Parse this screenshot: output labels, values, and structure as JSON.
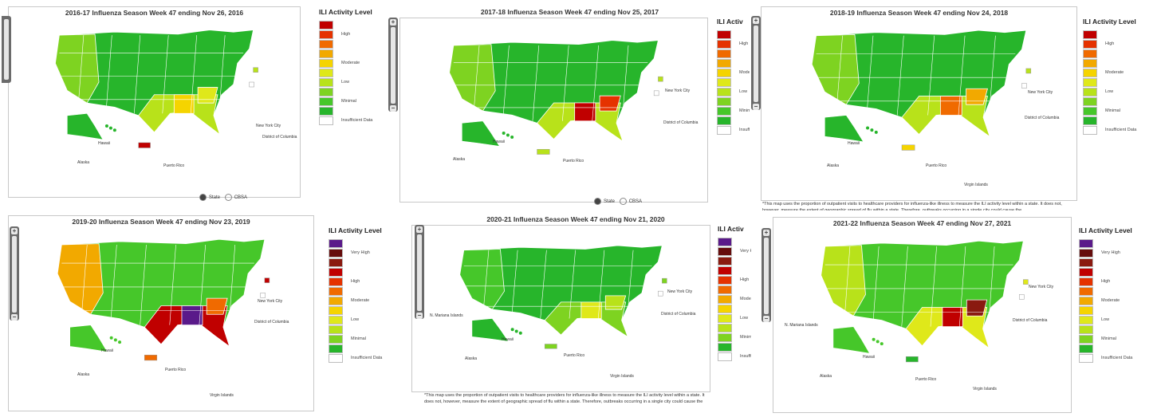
{
  "colors": {
    "minimal_dark": "#27b52b",
    "minimal": "#46c72a",
    "minimal_light": "#7ed321",
    "low_yellowgreen": "#b8e21a",
    "low": "#dfe81a",
    "moderate": "#f5d400",
    "moderate_orange": "#f2a900",
    "high": "#f06a00",
    "high_red": "#e53200",
    "very_high": "#c00000",
    "very_high_dark": "#8a1a10",
    "very_high_darkest": "#650c0c",
    "purple": "#5a1a8a",
    "insufficient": "#ffffff"
  },
  "panels": [
    {
      "title": "2016-17 Influenza Season Week 47 ending Nov 26, 2016",
      "legend_title": "ILI Activity Level",
      "legend": [
        {
          "color": "#c00000",
          "label": ""
        },
        {
          "color": "#e53200",
          "label": "High"
        },
        {
          "color": "#f06a00",
          "label": ""
        },
        {
          "color": "#f2a900",
          "label": ""
        },
        {
          "color": "#f5d400",
          "label": "Moderate"
        },
        {
          "color": "#dfe81a",
          "label": ""
        },
        {
          "color": "#b8e21a",
          "label": "Low"
        },
        {
          "color": "#7ed321",
          "label": ""
        },
        {
          "color": "#46c72a",
          "label": "Minimal"
        },
        {
          "color": "#27b52b",
          "label": ""
        },
        {
          "color": "#ffffff",
          "label": "Insufficient Data"
        }
      ],
      "places": {
        "nyc": "New York City",
        "dc": "District of Columbia",
        "hawaii": "Hawaii",
        "alaska": "Alaska",
        "pr": "Puerto Rico"
      },
      "toggle": {
        "state": "State",
        "cbsa": "CBSA"
      },
      "fills": {
        "main": "#27b52b",
        "west": "#7ed321",
        "south": "#b8e21a",
        "hot1": "#f5d400",
        "hot2": "#dfe81a",
        "pr": "#c00000"
      }
    },
    {
      "title": "2017-18 Influenza Season Week 47 ending Nov 25, 2017",
      "places": {
        "nyc": "New York City",
        "dc": "District of Columbia",
        "hawaii": "Hawaii",
        "alaska": "Alaska",
        "pr": "Puerto Rico"
      },
      "toggle": {
        "state": "State",
        "cbsa": "CBSA"
      },
      "fills": {
        "main": "#27b52b",
        "west": "#7ed321",
        "south": "#b8e21a",
        "hot1": "#c00000",
        "hot2": "#e53200",
        "pr": "#b8e21a"
      }
    },
    {
      "title": "2018-19 Influenza Season Week 47 ending Nov 24, 2018",
      "legend_title": "ILI Activity Level",
      "legend": [
        {
          "color": "#c00000",
          "label": ""
        },
        {
          "color": "#e53200",
          "label": "High"
        },
        {
          "color": "#f06a00",
          "label": ""
        },
        {
          "color": "#f2a900",
          "label": ""
        },
        {
          "color": "#f5d400",
          "label": "Moderate"
        },
        {
          "color": "#dfe81a",
          "label": ""
        },
        {
          "color": "#b8e21a",
          "label": "Low"
        },
        {
          "color": "#7ed321",
          "label": ""
        },
        {
          "color": "#46c72a",
          "label": "Minimal"
        },
        {
          "color": "#27b52b",
          "label": ""
        },
        {
          "color": "#ffffff",
          "label": "Insufficient Data"
        }
      ],
      "places": {
        "nyc": "New York City",
        "dc": "District of Columbia",
        "hawaii": "Hawaii",
        "alaska": "Alaska",
        "pr": "Puerto Rico",
        "vi": "Virgin Islands"
      },
      "footnote": "*This map uses the proportion of outpatient visits to healthcare providers for influenza-like illness to measure the ILI activity level within a state. It does not, however, measure the extent of geographic spread of flu within a state. Therefore, outbreaks occurring in a single city could cause the",
      "fills": {
        "main": "#27b52b",
        "west": "#7ed321",
        "south": "#b8e21a",
        "hot1": "#f06a00",
        "hot2": "#f2a900",
        "pr": "#f5d400"
      }
    },
    {
      "title": "2019-20 Influenza Season Week 47 ending Nov 23, 2019",
      "legend_title": "ILI Activity Level",
      "legend": [
        {
          "color": "#5a1a8a",
          "label": ""
        },
        {
          "color": "#650c0c",
          "label": "Very High"
        },
        {
          "color": "#8a1a10",
          "label": ""
        },
        {
          "color": "#c00000",
          "label": ""
        },
        {
          "color": "#e53200",
          "label": "High"
        },
        {
          "color": "#f06a00",
          "label": ""
        },
        {
          "color": "#f2a900",
          "label": "Moderate"
        },
        {
          "color": "#f5d400",
          "label": ""
        },
        {
          "color": "#dfe81a",
          "label": "Low"
        },
        {
          "color": "#b8e21a",
          "label": ""
        },
        {
          "color": "#7ed321",
          "label": "Minimal"
        },
        {
          "color": "#27b52b",
          "label": ""
        },
        {
          "color": "#ffffff",
          "label": "Insufficient Data"
        }
      ],
      "places": {
        "nyc": "New York City",
        "dc": "District of Columbia",
        "hawaii": "Hawaii",
        "alaska": "Alaska",
        "pr": "Puerto Rico",
        "vi": "Virgin Islands"
      },
      "fills": {
        "main": "#46c72a",
        "west": "#f2a900",
        "south": "#c00000",
        "hot1": "#5a1a8a",
        "hot2": "#f06a00",
        "pr": "#f06a00"
      }
    },
    {
      "title": "2020-21 Influenza Season Week 47 ending Nov 21, 2020",
      "places": {
        "nyc": "New York City",
        "dc": "District of Columbia",
        "hawaii": "Hawaii",
        "alaska": "Alaska",
        "pr": "Puerto Rico",
        "vi": "Virgin Islands",
        "nmi": "N. Mariana Islands"
      },
      "footnote": "*This map uses the proportion of outpatient visits to healthcare providers for influenza-like illness to measure the ILI activity level within a state. It does not, however, measure the extent of geographic spread of flu within a state. Therefore, outbreaks occurring in a single city could cause the",
      "fills": {
        "main": "#27b52b",
        "west": "#46c72a",
        "south": "#7ed321",
        "hot1": "#dfe81a",
        "hot2": "#b8e21a",
        "pr": "#7ed321"
      }
    },
    {
      "title": "2021-22 Influenza Season Week 47 ending Nov 27, 2021",
      "legend_title": "ILI Activity Level",
      "legend": [
        {
          "color": "#5a1a8a",
          "label": ""
        },
        {
          "color": "#650c0c",
          "label": "Very High"
        },
        {
          "color": "#8a1a10",
          "label": ""
        },
        {
          "color": "#c00000",
          "label": ""
        },
        {
          "color": "#e53200",
          "label": "High"
        },
        {
          "color": "#f06a00",
          "label": ""
        },
        {
          "color": "#f2a900",
          "label": "Moderate"
        },
        {
          "color": "#f5d400",
          "label": ""
        },
        {
          "color": "#dfe81a",
          "label": "Low"
        },
        {
          "color": "#b8e21a",
          "label": ""
        },
        {
          "color": "#7ed321",
          "label": "Minimal"
        },
        {
          "color": "#27b52b",
          "label": ""
        },
        {
          "color": "#ffffff",
          "label": "Insufficient Data"
        }
      ],
      "places": {
        "nyc": "New York City",
        "dc": "District of Columbia",
        "hawaii": "Hawaii",
        "alaska": "Alaska",
        "pr": "Puerto Rico",
        "vi": "Virgin Islands",
        "nmi": "N. Mariana Islands"
      },
      "fills": {
        "main": "#46c72a",
        "west": "#b8e21a",
        "south": "#dfe81a",
        "hot1": "#c00000",
        "hot2": "#8a1a10",
        "pr": "#27b52b"
      }
    }
  ],
  "middle_legend_top": [
    {
      "color": "#c00000"
    },
    {
      "color": "#e53200",
      "label": "High"
    },
    {
      "color": "#f06a00"
    },
    {
      "color": "#f2a900"
    },
    {
      "color": "#f5d400",
      "label": "Moderate"
    },
    {
      "color": "#dfe81a"
    },
    {
      "color": "#b8e21a",
      "label": "Low"
    },
    {
      "color": "#7ed321"
    },
    {
      "color": "#46c72a",
      "label": "Minimal"
    },
    {
      "color": "#27b52b"
    },
    {
      "color": "#ffffff",
      "label": "Insuffic"
    }
  ],
  "middle_legend_top_title": "ILI Activ",
  "middle_legend_bottom": [
    {
      "color": "#5a1a8a"
    },
    {
      "color": "#650c0c",
      "label": "Very High"
    },
    {
      "color": "#8a1a10"
    },
    {
      "color": "#c00000"
    },
    {
      "color": "#e53200",
      "label": "High"
    },
    {
      "color": "#f06a00"
    },
    {
      "color": "#f2a900",
      "label": "Moderate"
    },
    {
      "color": "#f5d400"
    },
    {
      "color": "#dfe81a",
      "label": "Low"
    },
    {
      "color": "#b8e21a"
    },
    {
      "color": "#7ed321",
      "label": "Minimal"
    },
    {
      "color": "#27b52b"
    },
    {
      "color": "#ffffff",
      "label": "Insufficie"
    }
  ],
  "middle_legend_bottom_title": "ILI Activ"
}
